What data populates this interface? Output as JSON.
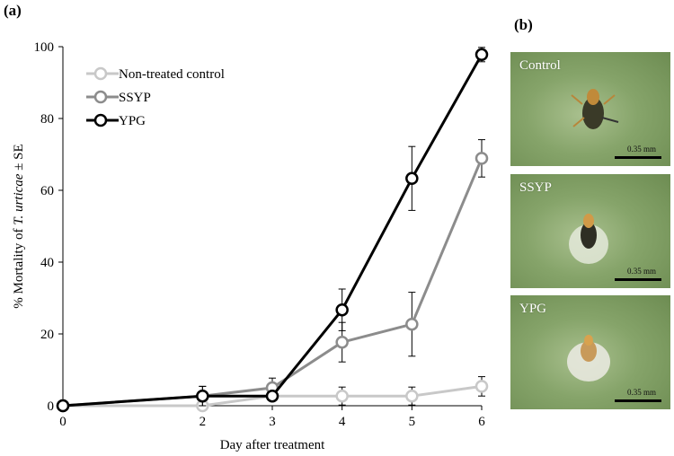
{
  "panel_a_label": "(a)",
  "panel_b_label": "(b)",
  "chart_data": {
    "type": "line",
    "x": [
      0,
      2,
      3,
      4,
      5,
      6
    ],
    "xlabel": "Day after treatment",
    "ylabel_prefix": "% Mortality of ",
    "ylabel_italic": "T. urticae",
    "ylabel_suffix": " ± SE",
    "ylim": [
      0,
      100
    ],
    "yticks": [
      0,
      20,
      40,
      60,
      80,
      100
    ],
    "legend_position": "top-left",
    "grid": false,
    "series": [
      {
        "name": "Non-treated control",
        "color": "#c8c8c8",
        "values": [
          0,
          0,
          2.7,
          2.7,
          2.7,
          5.4
        ],
        "errors": [
          0,
          0,
          0,
          2.5,
          2.5,
          2.7
        ]
      },
      {
        "name": "SSYP",
        "color": "#8c8c8c",
        "values": [
          0,
          2.7,
          5.0,
          17.7,
          22.7,
          68.9
        ],
        "errors": [
          0,
          2.7,
          2.7,
          5.5,
          8.9,
          5.2
        ]
      },
      {
        "name": "YPG",
        "color": "#000000",
        "values": [
          0,
          2.7,
          2.7,
          26.7,
          63.3,
          97.8
        ],
        "errors": [
          0,
          2.7,
          0,
          5.8,
          8.9,
          2.0
        ]
      }
    ]
  },
  "photos": [
    {
      "label": "Control",
      "scale": "0.35 mm"
    },
    {
      "label": "SSYP",
      "scale": "0.35 mm"
    },
    {
      "label": "YPG",
      "scale": "0.35 mm"
    }
  ]
}
